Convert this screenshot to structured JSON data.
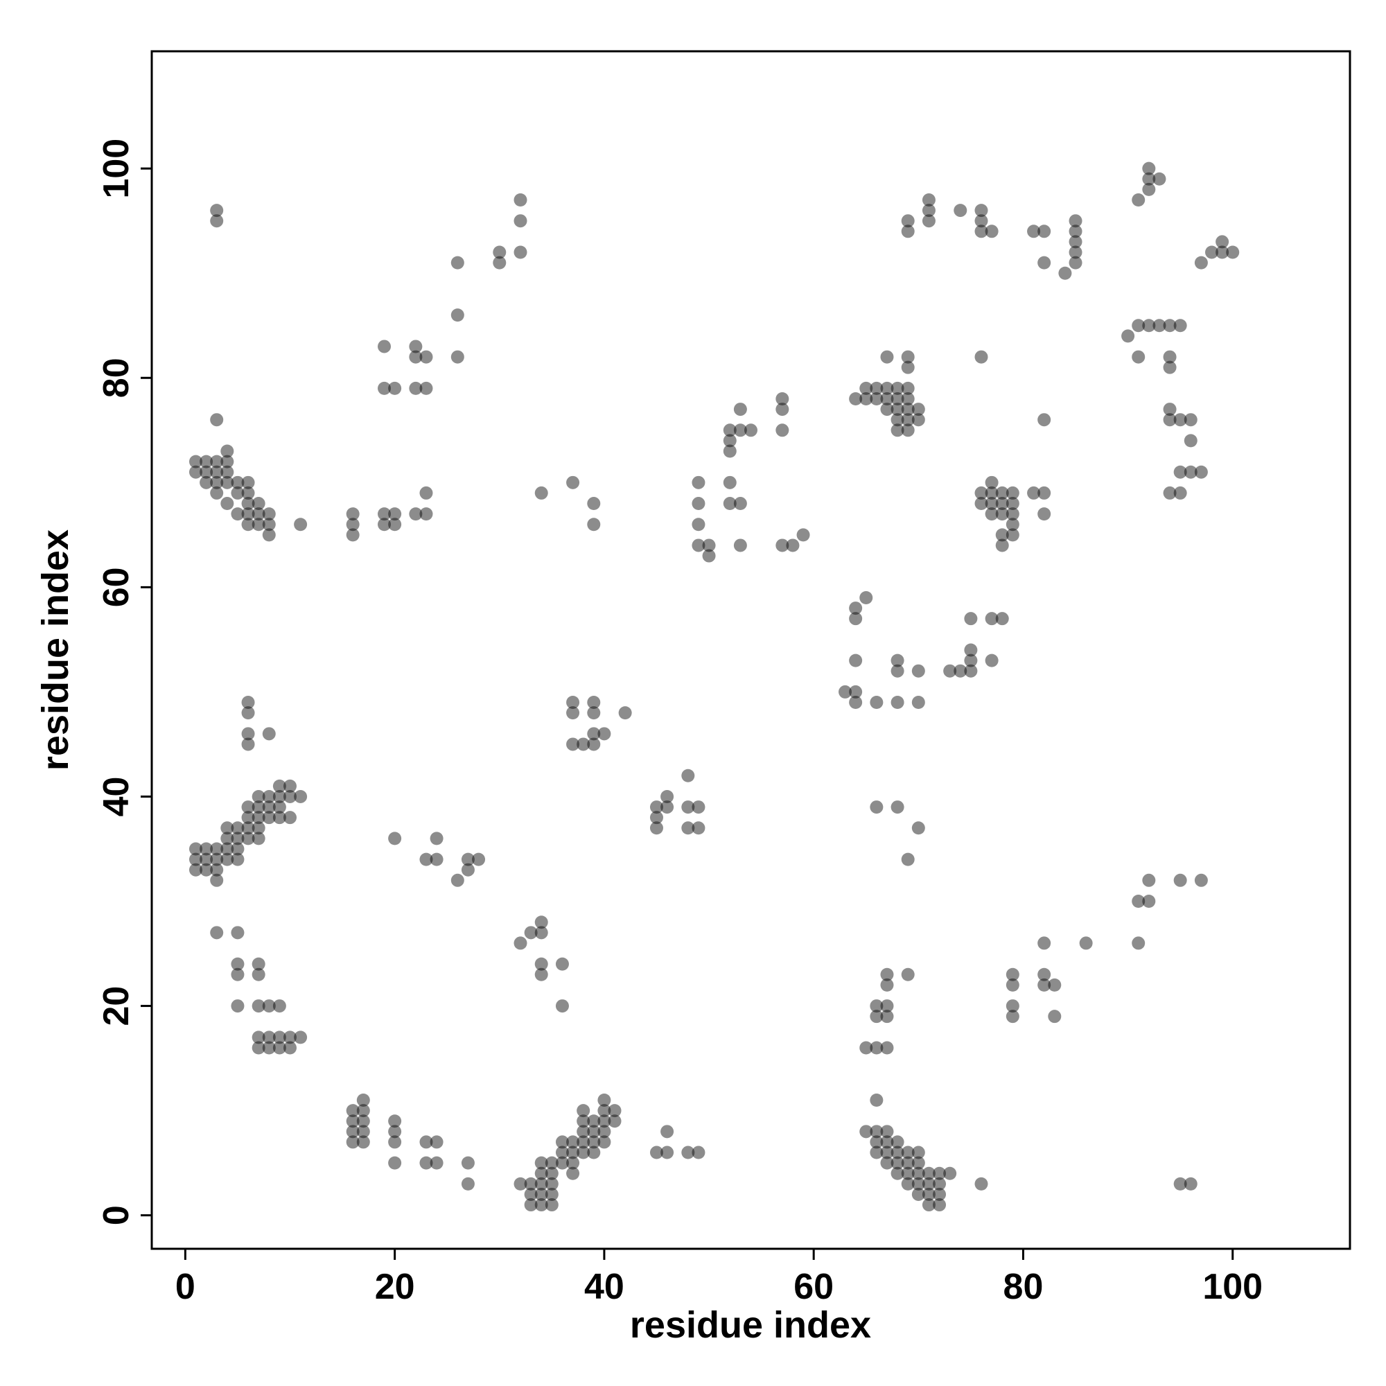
{
  "chart_data": {
    "type": "scatter",
    "xlabel": "residue index",
    "ylabel": "residue index",
    "xlim": [
      -3.2,
      111.2
    ],
    "ylim": [
      -3.2,
      111.2
    ],
    "xticks": [
      0,
      20,
      40,
      60,
      80,
      100
    ],
    "yticks": [
      0,
      20,
      40,
      60,
      80,
      100
    ],
    "color": "rgba(0,0,0,0.45)",
    "x": [
      1,
      1,
      2,
      2,
      2,
      3,
      3,
      3,
      3,
      4,
      4,
      4,
      4,
      4,
      5,
      5,
      5,
      6,
      6,
      6,
      6,
      6,
      7,
      7,
      7,
      8,
      8,
      8,
      11,
      3,
      3,
      3,
      16,
      16,
      16,
      19,
      19,
      20,
      20,
      22,
      23,
      23,
      19,
      20,
      22,
      23,
      19,
      22,
      22,
      23,
      26,
      26,
      26,
      30,
      30,
      32,
      32,
      32,
      34,
      37,
      39,
      39,
      49,
      49,
      49,
      49,
      50,
      50,
      52,
      52,
      52,
      52,
      52,
      53,
      53,
      53,
      53,
      54,
      57,
      57,
      57,
      57,
      58,
      59,
      64,
      65,
      65,
      66,
      66,
      67,
      67,
      67,
      67,
      68,
      68,
      68,
      68,
      68,
      69,
      69,
      69,
      69,
      69,
      69,
      69,
      70,
      70,
      69,
      69,
      71,
      71,
      71,
      74,
      76,
      76,
      76,
      77,
      76,
      76,
      76,
      77,
      77,
      77,
      77,
      78,
      78,
      78,
      78,
      78,
      79,
      79,
      79,
      79,
      79,
      81,
      82,
      82,
      82,
      81,
      82,
      82,
      84,
      85,
      85,
      85,
      85,
      85,
      90,
      91,
      91,
      92,
      93,
      94,
      95,
      91,
      92,
      92,
      92,
      93,
      94,
      94,
      94,
      94,
      95,
      96,
      96,
      95,
      96,
      97,
      94,
      95,
      97,
      98,
      99,
      99,
      100,
      64,
      64,
      65,
      64,
      63,
      64,
      64,
      66,
      68,
      68,
      68,
      70,
      70,
      73,
      74,
      75,
      75,
      75,
      75,
      77,
      78,
      77,
      66,
      68,
      70,
      69,
      1,
      1,
      1,
      2,
      2,
      2,
      3,
      3,
      3,
      3,
      4,
      4,
      4,
      4,
      5,
      5,
      5,
      5,
      6,
      6,
      6,
      6,
      7,
      7,
      7,
      7,
      7,
      8,
      8,
      8,
      9,
      9,
      9,
      9,
      10,
      10,
      10,
      11,
      6,
      6,
      6,
      6,
      8,
      20,
      23,
      24,
      24,
      26,
      27,
      27,
      28,
      37,
      37,
      39,
      39,
      37,
      38,
      39,
      39,
      40,
      42,
      45,
      45,
      45,
      46,
      46,
      48,
      48,
      49,
      48,
      49,
      3,
      5,
      5,
      5,
      7,
      7,
      5,
      7,
      8,
      9,
      7,
      8,
      9,
      10,
      11,
      7,
      8,
      9,
      10,
      32,
      33,
      34,
      34,
      34,
      34,
      36,
      36,
      65,
      66,
      66,
      66,
      67,
      67,
      67,
      67,
      67,
      69,
      79,
      79,
      79,
      79,
      82,
      82,
      82,
      83,
      83,
      86,
      91,
      92,
      92,
      91,
      95,
      97,
      16,
      16,
      16,
      16,
      17,
      17,
      17,
      17,
      17,
      20,
      20,
      20,
      20,
      23,
      24,
      23,
      24,
      27,
      27,
      32,
      33,
      33,
      33,
      34,
      34,
      34,
      34,
      34,
      35,
      35,
      35,
      35,
      35,
      36,
      36,
      36,
      37,
      37,
      37,
      37,
      38,
      38,
      38,
      38,
      38,
      39,
      39,
      39,
      39,
      40,
      40,
      40,
      40,
      40,
      41,
      41,
      45,
      46,
      46,
      48,
      49,
      65,
      66,
      66,
      66,
      66,
      67,
      67,
      67,
      67,
      68,
      68,
      68,
      68,
      69,
      69,
      69,
      69,
      70,
      70,
      70,
      70,
      70,
      71,
      71,
      71,
      71,
      72,
      72,
      72,
      72,
      73,
      76,
      95,
      96
    ],
    "y": [
      72,
      71,
      72,
      71,
      70,
      72,
      71,
      70,
      69,
      73,
      72,
      71,
      70,
      68,
      70,
      69,
      67,
      70,
      69,
      68,
      67,
      66,
      68,
      67,
      66,
      67,
      66,
      65,
      66,
      76,
      96,
      95,
      67,
      66,
      65,
      67,
      66,
      67,
      66,
      67,
      69,
      67,
      79,
      79,
      79,
      79,
      83,
      83,
      82,
      82,
      86,
      82,
      91,
      92,
      91,
      97,
      95,
      92,
      69,
      70,
      68,
      66,
      70,
      68,
      66,
      64,
      64,
      63,
      75,
      74,
      73,
      70,
      68,
      77,
      75,
      68,
      64,
      75,
      78,
      77,
      75,
      64,
      64,
      65,
      78,
      79,
      78,
      79,
      78,
      82,
      79,
      78,
      77,
      79,
      78,
      77,
      76,
      75,
      82,
      81,
      79,
      78,
      77,
      76,
      75,
      77,
      76,
      95,
      94,
      97,
      96,
      95,
      96,
      96,
      95,
      94,
      94,
      82,
      69,
      68,
      70,
      69,
      68,
      67,
      69,
      68,
      67,
      65,
      64,
      69,
      68,
      67,
      66,
      65,
      69,
      69,
      67,
      76,
      94,
      94,
      91,
      90,
      95,
      94,
      93,
      92,
      91,
      84,
      85,
      82,
      85,
      85,
      85,
      85,
      97,
      100,
      99,
      98,
      99,
      82,
      81,
      77,
      76,
      76,
      76,
      74,
      71,
      71,
      71,
      69,
      69,
      91,
      92,
      93,
      92,
      92,
      58,
      57,
      59,
      53,
      50,
      50,
      49,
      49,
      53,
      52,
      49,
      52,
      49,
      52,
      52,
      54,
      53,
      52,
      57,
      57,
      57,
      53,
      39,
      39,
      37,
      34,
      35,
      34,
      33,
      35,
      34,
      33,
      35,
      34,
      33,
      32,
      37,
      36,
      35,
      34,
      37,
      36,
      35,
      34,
      39,
      38,
      37,
      36,
      40,
      39,
      38,
      37,
      36,
      40,
      39,
      38,
      41,
      40,
      39,
      38,
      41,
      40,
      38,
      40,
      49,
      48,
      46,
      45,
      46,
      36,
      34,
      36,
      34,
      32,
      34,
      33,
      34,
      49,
      48,
      49,
      48,
      45,
      45,
      46,
      45,
      46,
      48,
      39,
      38,
      37,
      40,
      39,
      42,
      39,
      39,
      37,
      37,
      27,
      27,
      24,
      23,
      24,
      23,
      20,
      20,
      20,
      20,
      17,
      17,
      17,
      17,
      17,
      16,
      16,
      16,
      16,
      26,
      27,
      28,
      27,
      24,
      23,
      24,
      20,
      16,
      20,
      19,
      16,
      23,
      22,
      20,
      19,
      16,
      23,
      23,
      22,
      20,
      19,
      26,
      23,
      22,
      22,
      19,
      26,
      30,
      32,
      30,
      26,
      32,
      32,
      10,
      9,
      8,
      7,
      11,
      10,
      9,
      8,
      7,
      9,
      8,
      7,
      5,
      7,
      7,
      5,
      5,
      5,
      3,
      3,
      3,
      2,
      1,
      5,
      4,
      3,
      2,
      1,
      5,
      4,
      3,
      2,
      1,
      7,
      6,
      5,
      7,
      6,
      5,
      4,
      10,
      9,
      8,
      7,
      6,
      9,
      8,
      7,
      6,
      11,
      10,
      9,
      8,
      7,
      10,
      9,
      6,
      8,
      6,
      6,
      6,
      8,
      11,
      8,
      7,
      6,
      8,
      7,
      6,
      5,
      7,
      6,
      5,
      4,
      6,
      5,
      4,
      3,
      6,
      5,
      4,
      3,
      2,
      4,
      3,
      2,
      1,
      4,
      3,
      2,
      1,
      4,
      3,
      3,
      3
    ]
  }
}
